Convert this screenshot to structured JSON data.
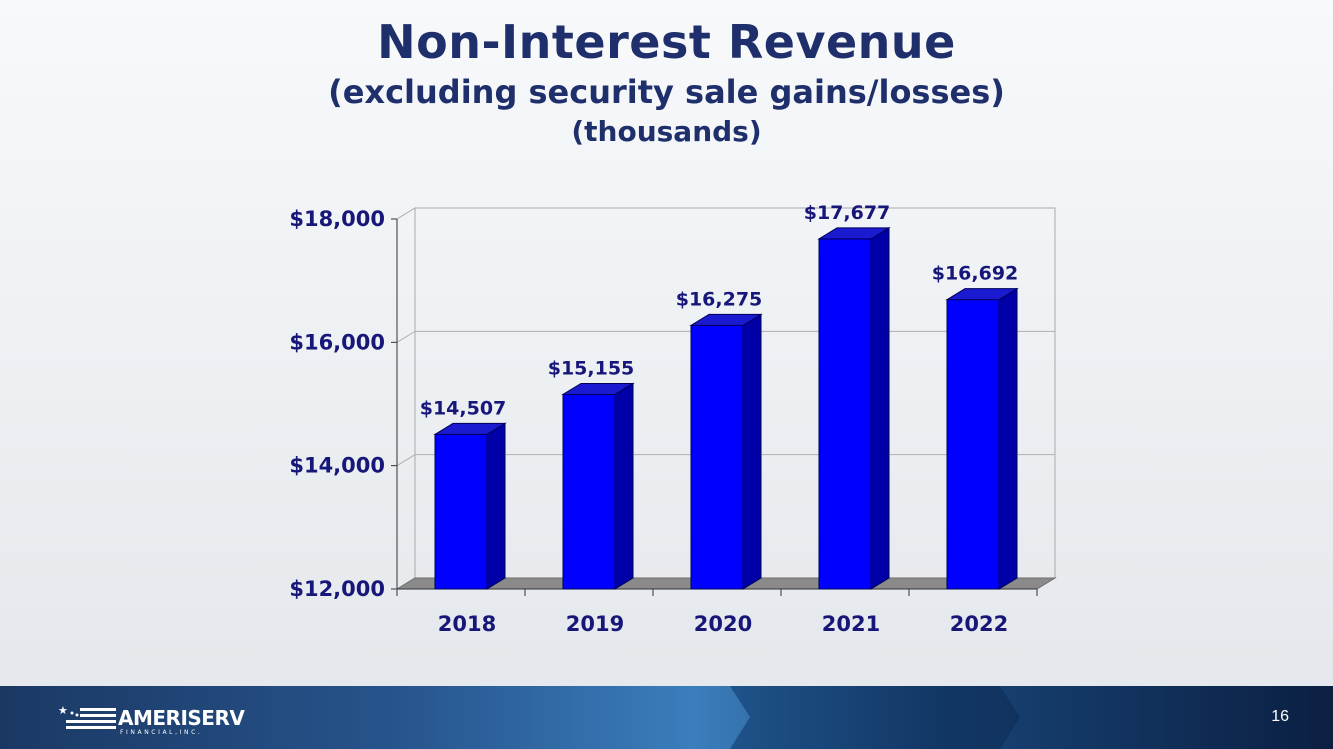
{
  "slide": {
    "title": "Non-Interest Revenue",
    "subtitle": "(excluding security sale gains/losses)",
    "subtitle2": "(thousands)",
    "page_number": "16"
  },
  "footer": {
    "logo_name": "AMERISERV",
    "logo_sub": "FINANCIAL,INC."
  },
  "colors": {
    "title": "#1f2f6b",
    "bar_front": "#0000ff",
    "bar_side": "#0000a6",
    "bar_top": "#1a1ad0",
    "labels": "#17177a",
    "floor": "#8a8a8a"
  },
  "chart_data": {
    "type": "bar",
    "categories": [
      "2018",
      "2019",
      "2020",
      "2021",
      "2022"
    ],
    "values": [
      14507,
      15155,
      16275,
      17677,
      16692
    ],
    "data_labels": [
      "$14,507",
      "$15,155",
      "$16,275",
      "$17,677",
      "$16,692"
    ],
    "ylim": [
      12000,
      18000
    ],
    "yticks": [
      12000,
      14000,
      16000,
      18000
    ],
    "ytick_labels": [
      "$12,000",
      "$14,000",
      "$16,000",
      "$18,000"
    ],
    "grid": true,
    "style": "3d"
  }
}
